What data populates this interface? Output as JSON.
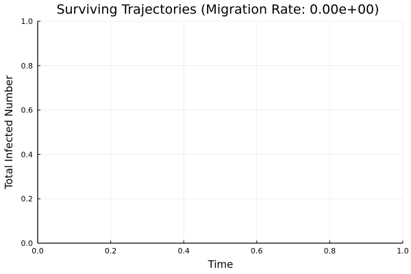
{
  "chart_data": {
    "type": "line",
    "title": "Surviving Trajectories (Migration Rate: 0.00e+00)",
    "xlabel": "Time",
    "ylabel": "Total Infected Number",
    "xlim": [
      0.0,
      1.0
    ],
    "ylim": [
      0.0,
      1.0
    ],
    "x_ticks": [
      "0.0",
      "0.2",
      "0.4",
      "0.6",
      "0.8",
      "1.0"
    ],
    "y_ticks": [
      "0.0",
      "0.2",
      "0.4",
      "0.6",
      "0.8",
      "1.0"
    ],
    "grid": true,
    "legend": "none",
    "series": []
  }
}
